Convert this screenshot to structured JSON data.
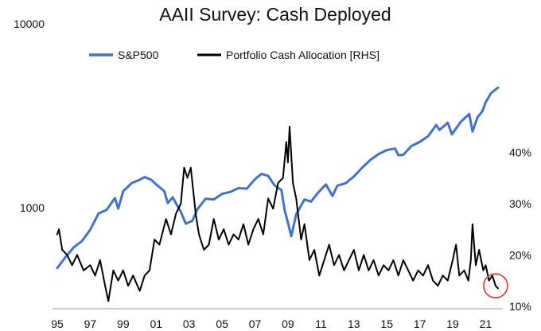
{
  "chart_data": {
    "type": "line",
    "title": "AAII Survey: Cash Deployed",
    "xlabel": "",
    "ylabel": "",
    "x_tick_labels": [
      "95",
      "97",
      "99",
      "01",
      "03",
      "05",
      "07",
      "09",
      "11",
      "13",
      "15",
      "17",
      "19",
      "21"
    ],
    "left_axis": {
      "scale": "log",
      "range": [
        300,
        10000
      ],
      "tick_labels": [
        "1000",
        "10000"
      ]
    },
    "right_axis": {
      "scale": "linear",
      "range": [
        10,
        45
      ],
      "tick_labels": [
        "10%",
        "20%",
        "30%",
        "40%"
      ]
    },
    "legend": {
      "position": "top-center"
    },
    "grid": false,
    "series": [
      {
        "name": "S&P500",
        "axis": "left",
        "color": "#4472C4",
        "points": [
          [
            1995.0,
            470
          ],
          [
            1995.5,
            540
          ],
          [
            1996.0,
            610
          ],
          [
            1996.5,
            660
          ],
          [
            1997.0,
            760
          ],
          [
            1997.5,
            930
          ],
          [
            1998.0,
            975
          ],
          [
            1998.5,
            1130
          ],
          [
            1998.7,
            990
          ],
          [
            1999.0,
            1230
          ],
          [
            1999.5,
            1360
          ],
          [
            2000.0,
            1420
          ],
          [
            2000.3,
            1470
          ],
          [
            2000.7,
            1420
          ],
          [
            2001.0,
            1340
          ],
          [
            2001.5,
            1230
          ],
          [
            2001.7,
            1060
          ],
          [
            2002.0,
            1140
          ],
          [
            2002.5,
            950
          ],
          [
            2002.8,
            820
          ],
          [
            2003.2,
            850
          ],
          [
            2003.5,
            980
          ],
          [
            2004.0,
            1120
          ],
          [
            2004.5,
            1110
          ],
          [
            2005.0,
            1190
          ],
          [
            2005.5,
            1220
          ],
          [
            2006.0,
            1280
          ],
          [
            2006.5,
            1270
          ],
          [
            2007.0,
            1430
          ],
          [
            2007.4,
            1530
          ],
          [
            2007.8,
            1490
          ],
          [
            2008.2,
            1320
          ],
          [
            2008.6,
            1250
          ],
          [
            2008.8,
            970
          ],
          [
            2009.0,
            830
          ],
          [
            2009.2,
            700
          ],
          [
            2009.5,
            920
          ],
          [
            2010.0,
            1110
          ],
          [
            2010.4,
            1080
          ],
          [
            2010.8,
            1200
          ],
          [
            2011.3,
            1340
          ],
          [
            2011.7,
            1160
          ],
          [
            2012.0,
            1320
          ],
          [
            2012.5,
            1360
          ],
          [
            2013.0,
            1480
          ],
          [
            2013.5,
            1650
          ],
          [
            2014.0,
            1820
          ],
          [
            2014.5,
            1960
          ],
          [
            2015.0,
            2060
          ],
          [
            2015.5,
            2100
          ],
          [
            2015.7,
            1930
          ],
          [
            2016.0,
            1940
          ],
          [
            2016.5,
            2170
          ],
          [
            2017.0,
            2280
          ],
          [
            2017.5,
            2450
          ],
          [
            2018.0,
            2820
          ],
          [
            2018.2,
            2650
          ],
          [
            2018.7,
            2900
          ],
          [
            2018.95,
            2510
          ],
          [
            2019.5,
            2940
          ],
          [
            2020.0,
            3230
          ],
          [
            2020.2,
            2600
          ],
          [
            2020.5,
            3100
          ],
          [
            2020.8,
            3350
          ],
          [
            2021.0,
            3750
          ],
          [
            2021.3,
            4180
          ],
          [
            2021.6,
            4400
          ],
          [
            2021.75,
            4500
          ]
        ]
      },
      {
        "name": "Portfolio Cash Allocation [RHS]",
        "axis": "right",
        "color": "#000000",
        "points": [
          [
            1995.0,
            24
          ],
          [
            1995.1,
            25
          ],
          [
            1995.3,
            21
          ],
          [
            1995.6,
            20
          ],
          [
            1995.9,
            18
          ],
          [
            1996.2,
            20
          ],
          [
            1996.6,
            17
          ],
          [
            1997.0,
            18
          ],
          [
            1997.3,
            16
          ],
          [
            1997.6,
            19
          ],
          [
            1997.9,
            14
          ],
          [
            1998.1,
            11
          ],
          [
            1998.4,
            17
          ],
          [
            1998.7,
            15
          ],
          [
            1999.0,
            17
          ],
          [
            1999.3,
            14
          ],
          [
            1999.6,
            16
          ],
          [
            2000.0,
            13
          ],
          [
            2000.3,
            16
          ],
          [
            2000.6,
            17
          ],
          [
            2000.9,
            23
          ],
          [
            2001.2,
            22
          ],
          [
            2001.6,
            27
          ],
          [
            2001.9,
            24
          ],
          [
            2002.2,
            28
          ],
          [
            2002.5,
            30
          ],
          [
            2002.7,
            37
          ],
          [
            2002.9,
            35
          ],
          [
            2003.1,
            37
          ],
          [
            2003.4,
            28
          ],
          [
            2003.6,
            24
          ],
          [
            2003.9,
            21
          ],
          [
            2004.2,
            22
          ],
          [
            2004.5,
            27
          ],
          [
            2004.8,
            23
          ],
          [
            2005.1,
            25
          ],
          [
            2005.4,
            22
          ],
          [
            2005.7,
            24
          ],
          [
            2006.0,
            23
          ],
          [
            2006.3,
            26
          ],
          [
            2006.6,
            22
          ],
          [
            2006.9,
            25
          ],
          [
            2007.2,
            27
          ],
          [
            2007.5,
            24
          ],
          [
            2007.8,
            31
          ],
          [
            2008.1,
            29
          ],
          [
            2008.4,
            34
          ],
          [
            2008.7,
            35
          ],
          [
            2008.9,
            42
          ],
          [
            2009.0,
            38
          ],
          [
            2009.1,
            45
          ],
          [
            2009.3,
            34
          ],
          [
            2009.5,
            31
          ],
          [
            2009.8,
            23
          ],
          [
            2010.0,
            26
          ],
          [
            2010.3,
            19
          ],
          [
            2010.6,
            21
          ],
          [
            2010.9,
            16
          ],
          [
            2011.2,
            19
          ],
          [
            2011.5,
            22
          ],
          [
            2011.8,
            18
          ],
          [
            2012.1,
            20
          ],
          [
            2012.4,
            17
          ],
          [
            2012.7,
            19
          ],
          [
            2013.0,
            21
          ],
          [
            2013.3,
            17
          ],
          [
            2013.6,
            20
          ],
          [
            2013.9,
            17
          ],
          [
            2014.2,
            19
          ],
          [
            2014.5,
            16
          ],
          [
            2014.8,
            18
          ],
          [
            2015.1,
            17
          ],
          [
            2015.4,
            19
          ],
          [
            2015.7,
            16
          ],
          [
            2016.0,
            19
          ],
          [
            2016.3,
            17
          ],
          [
            2016.6,
            15
          ],
          [
            2016.9,
            17
          ],
          [
            2017.2,
            16
          ],
          [
            2017.5,
            18
          ],
          [
            2017.8,
            15
          ],
          [
            2018.1,
            14
          ],
          [
            2018.4,
            16
          ],
          [
            2018.7,
            15
          ],
          [
            2019.0,
            19
          ],
          [
            2019.2,
            22
          ],
          [
            2019.4,
            16
          ],
          [
            2019.7,
            17
          ],
          [
            2019.95,
            15
          ],
          [
            2020.1,
            19
          ],
          [
            2020.2,
            26
          ],
          [
            2020.4,
            18
          ],
          [
            2020.6,
            21
          ],
          [
            2020.85,
            17
          ],
          [
            2021.0,
            18
          ],
          [
            2021.2,
            15
          ],
          [
            2021.4,
            16
          ],
          [
            2021.6,
            14
          ],
          [
            2021.75,
            13.5
          ]
        ]
      }
    ],
    "annotation": {
      "type": "circle",
      "color": "#E03030",
      "x": 2021.6,
      "y_right": 14
    }
  }
}
